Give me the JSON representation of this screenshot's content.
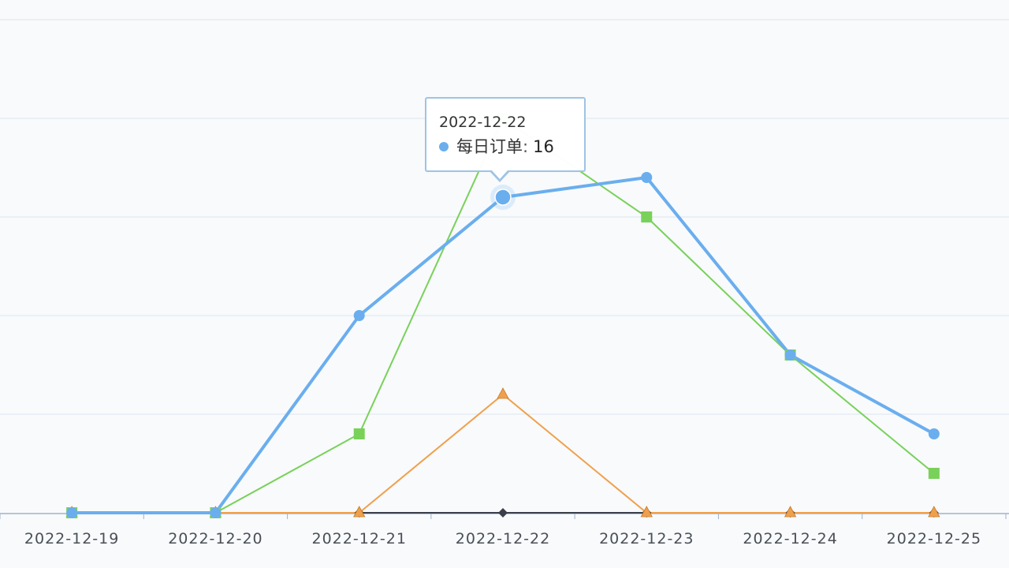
{
  "chart_data": {
    "type": "line",
    "categories": [
      "2022-12-19",
      "2022-12-20",
      "2022-12-21",
      "2022-12-22",
      "2022-12-23",
      "2022-12-24",
      "2022-12-25"
    ],
    "ylim": [
      0,
      25
    ],
    "grid": true,
    "series": [
      {
        "name": "每日订单",
        "color": "#6aaeee",
        "marker": "circle",
        "values": [
          0,
          0,
          10,
          16,
          17,
          8,
          4
        ]
      },
      {
        "name": "",
        "color": "#79d15a",
        "marker": "square",
        "values": [
          0,
          0,
          4,
          20,
          15,
          8,
          2
        ]
      },
      {
        "name": "",
        "color": "#f0a04b",
        "marker": "triangle",
        "values": [
          0,
          0,
          0,
          6,
          0,
          0,
          0
        ]
      },
      {
        "name": "",
        "color": "#3a3f4b",
        "marker": "diamond",
        "values": [
          0,
          0,
          0,
          0,
          0,
          0,
          0
        ]
      }
    ],
    "highlight_index": 3
  },
  "tooltip": {
    "date": "2022-12-22",
    "series_name": "每日订单",
    "separator": ":",
    "value": "16",
    "color": "#6aaeee"
  }
}
